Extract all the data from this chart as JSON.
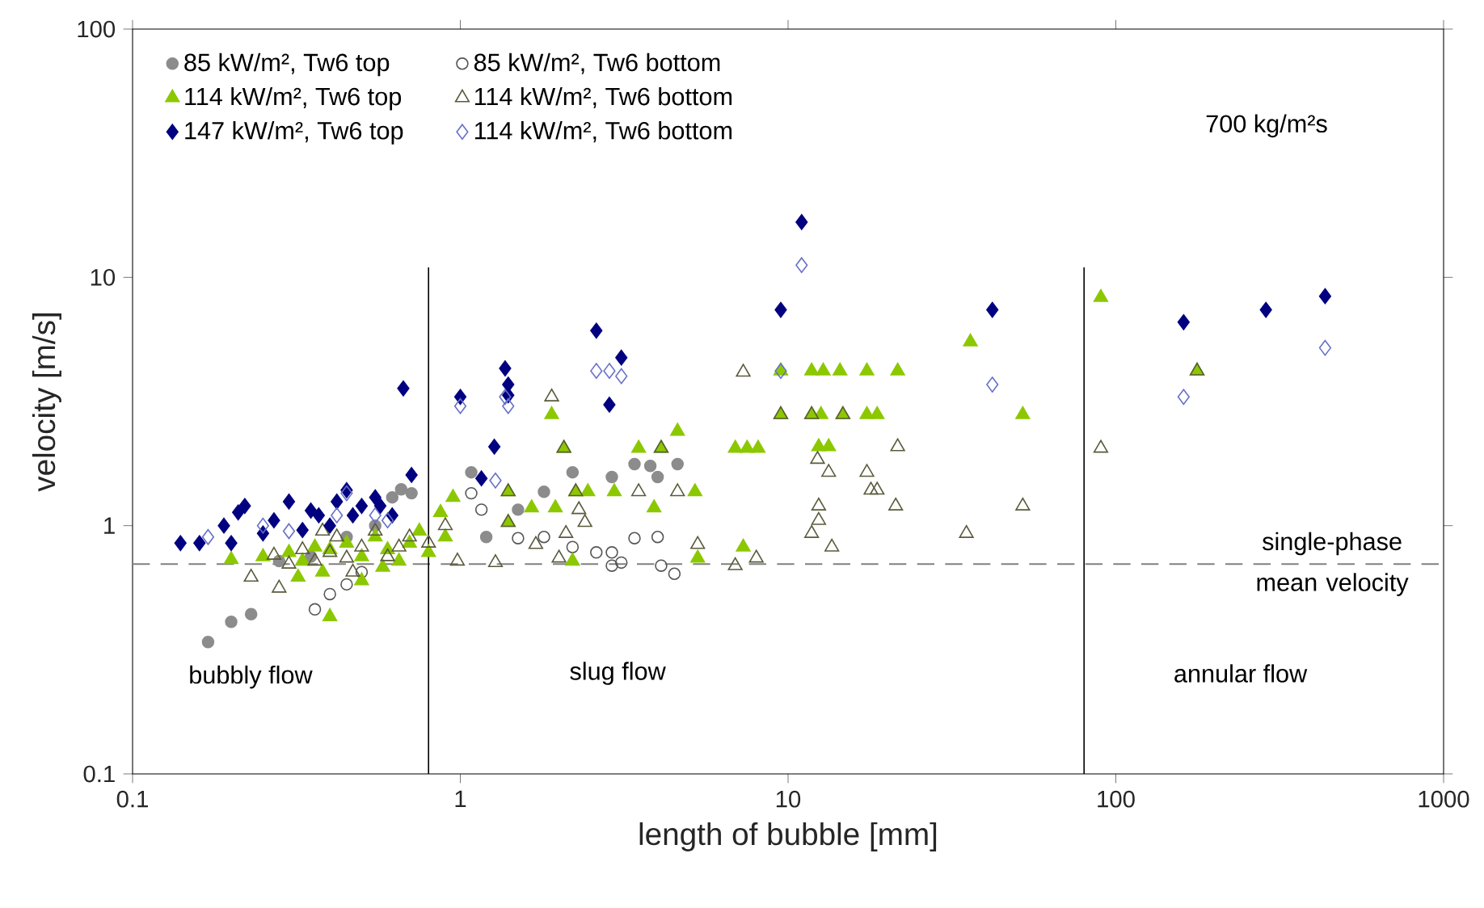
{
  "chart_data": {
    "type": "scatter",
    "xlabel": "length of bubble [mm]",
    "ylabel": "velocity [m/s]",
    "log": "xy",
    "xlim": [
      0.1,
      1000
    ],
    "ylim": [
      0.1,
      100
    ],
    "xticks": [
      0.1,
      1,
      10,
      100,
      1000
    ],
    "yticks": [
      0.1,
      1,
      10,
      100
    ],
    "grid": false,
    "legend": "top left",
    "series": [
      {
        "name": "85 kW/m², Tw6 top",
        "color": "#8c8c8c",
        "marker": "circle",
        "x": [
          0.17,
          0.2,
          0.23,
          0.62,
          0.66,
          0.71,
          0.45,
          1.08,
          1.2,
          1.5,
          1.8,
          2.2,
          2.9,
          3.4,
          3.8,
          4.0,
          4.6,
          0.55,
          0.35,
          0.28
        ],
        "values": [
          0.34,
          0.41,
          0.44,
          1.3,
          1.4,
          1.35,
          0.9,
          1.64,
          0.9,
          1.16,
          1.37,
          1.64,
          1.57,
          1.77,
          1.74,
          1.57,
          1.77,
          1.0,
          0.75,
          0.72
        ]
      },
      {
        "name": "85 kW/m², Tw6 bottom",
        "color": "#555555",
        "marker": "circle-open",
        "x": [
          0.36,
          0.4,
          0.45,
          0.5,
          1.08,
          1.16,
          1.5,
          1.8,
          2.2,
          2.6,
          2.9,
          2.9,
          3.1,
          3.4,
          4.0,
          4.1,
          4.5
        ],
        "values": [
          0.46,
          0.53,
          0.58,
          0.65,
          1.35,
          1.16,
          0.89,
          0.9,
          0.82,
          0.78,
          0.78,
          0.69,
          0.71,
          0.89,
          0.9,
          0.69,
          0.64
        ]
      },
      {
        "name": "114 kW/m², Tw6 top",
        "color": "#8cc800",
        "marker": "triangle",
        "x": [
          0.2,
          0.25,
          0.3,
          0.33,
          0.36,
          0.4,
          0.45,
          0.5,
          0.55,
          0.6,
          0.65,
          0.7,
          0.75,
          0.8,
          0.9,
          0.95,
          0.38,
          0.44,
          0.5,
          0.4,
          0.32,
          0.58,
          0.87,
          1.4,
          1.4,
          1.65,
          1.9,
          1.95,
          2.07,
          2.2,
          2.25,
          2.45,
          2.95,
          3.5,
          3.9,
          4.1,
          4.6,
          5.2,
          5.3,
          6.9,
          7.3,
          7.5,
          8.1,
          9.5,
          9.5,
          11.8,
          11.8,
          12.4,
          12.6,
          12.8,
          13.3,
          14.4,
          14.7,
          17.4,
          17.4,
          18.7,
          21.6,
          36,
          52,
          90,
          177
        ],
        "values": [
          0.73,
          0.75,
          0.78,
          0.72,
          0.82,
          0.8,
          0.85,
          0.75,
          0.9,
          0.8,
          0.72,
          0.85,
          0.95,
          0.78,
          0.9,
          1.3,
          0.65,
          null,
          0.6,
          0.43,
          0.62,
          0.68,
          1.13,
          1.37,
          1.03,
          1.18,
          2.8,
          1.18,
          2.05,
          0.72,
          1.37,
          1.37,
          1.37,
          2.05,
          1.18,
          2.05,
          2.4,
          1.37,
          0.74,
          2.05,
          0.82,
          2.05,
          2.05,
          2.8,
          4.2,
          4.2,
          2.8,
          2.08,
          2.8,
          4.2,
          2.08,
          4.2,
          2.8,
          4.2,
          2.8,
          2.8,
          4.2,
          5.5,
          2.8,
          8.3,
          4.2
        ]
      },
      {
        "name": "114 kW/m², Tw6 bottom",
        "color": "#5a5a3c",
        "marker": "triangle-open",
        "x": [
          0.23,
          0.27,
          0.3,
          0.33,
          0.36,
          0.4,
          0.42,
          0.45,
          0.5,
          0.55,
          0.6,
          0.65,
          0.7,
          0.8,
          0.9,
          0.38,
          0.47,
          0.28,
          0.98,
          1.28,
          1.4,
          1.4,
          1.7,
          1.9,
          2.0,
          2.07,
          2.1,
          2.25,
          2.3,
          2.4,
          3.5,
          4.1,
          4.6,
          5.3,
          6.9,
          7.3,
          8.0,
          9.5,
          11.8,
          11.8,
          12.3,
          12.4,
          12.4,
          13.3,
          13.6,
          14.7,
          17.4,
          17.9,
          18.7,
          21.3,
          21.6,
          35,
          52,
          90,
          177
        ],
        "values": [
          0.62,
          0.76,
          0.7,
          0.8,
          0.72,
          0.78,
          0.9,
          0.74,
          0.82,
          0.95,
          0.75,
          0.82,
          0.9,
          0.85,
          1.0,
          0.95,
          0.65,
          0.56,
          0.72,
          0.71,
          1.37,
          1.03,
          0.84,
          3.3,
          0.74,
          2.05,
          0.93,
          1.37,
          1.16,
          1.03,
          1.37,
          2.05,
          1.37,
          0.84,
          0.69,
          4.15,
          0.74,
          2.8,
          2.8,
          0.93,
          1.85,
          1.2,
          1.05,
          1.64,
          0.82,
          2.8,
          1.64,
          1.39,
          1.39,
          1.2,
          2.08,
          0.93,
          1.2,
          2.05,
          4.2
        ]
      },
      {
        "name": "147 kW/m², Tw6 top",
        "color": "#000080",
        "marker": "diamond",
        "x": [
          0.14,
          0.16,
          0.19,
          0.21,
          0.22,
          0.2,
          0.25,
          0.27,
          0.3,
          0.33,
          0.35,
          0.37,
          0.4,
          0.42,
          0.45,
          0.47,
          0.5,
          0.55,
          0.57,
          0.62,
          0.71,
          0.67,
          1.0,
          1.16,
          1.27,
          1.37,
          1.4,
          1.4,
          2.6,
          2.85,
          3.1,
          9.5,
          11,
          42,
          161,
          287,
          435
        ],
        "values": [
          0.85,
          0.85,
          1.0,
          1.13,
          1.2,
          0.85,
          0.93,
          1.05,
          1.25,
          0.96,
          1.15,
          1.1,
          1.0,
          1.25,
          1.39,
          1.1,
          1.2,
          1.3,
          1.2,
          1.1,
          1.6,
          3.57,
          3.3,
          1.55,
          2.08,
          4.3,
          3.7,
          3.35,
          6.1,
          3.07,
          4.75,
          7.4,
          16.7,
          7.4,
          6.6,
          7.4,
          8.4
        ]
      },
      {
        "name": "114 kW/m², Tw6 bottom",
        "color": "#6670c8",
        "marker": "diamond-open",
        "x": [
          0.17,
          0.25,
          0.3,
          0.42,
          0.45,
          0.55,
          0.6,
          1.0,
          1.28,
          1.37,
          1.4,
          2.6,
          2.85,
          3.1,
          9.5,
          11,
          42,
          161,
          435
        ],
        "values": [
          0.9,
          1.0,
          0.95,
          1.1,
          1.35,
          1.1,
          1.05,
          3.03,
          1.52,
          3.3,
          3.03,
          4.2,
          4.2,
          4.0,
          4.2,
          11.2,
          3.7,
          3.3,
          5.2
        ]
      }
    ],
    "ref_lines": [
      {
        "axis": "y",
        "value": 0.7,
        "label": "single-phase mean velocity",
        "line_style": "dashed",
        "color": "#808080"
      },
      {
        "axis": "x",
        "value": 0.8,
        "color": "#000000",
        "line_style": "solid"
      },
      {
        "axis": "x",
        "value": 80,
        "color": "#000000",
        "line_style": "solid"
      }
    ],
    "annotations": [
      "bubbly flow",
      "slug flow",
      "annular flow",
      "700 kg/m²s"
    ]
  }
}
